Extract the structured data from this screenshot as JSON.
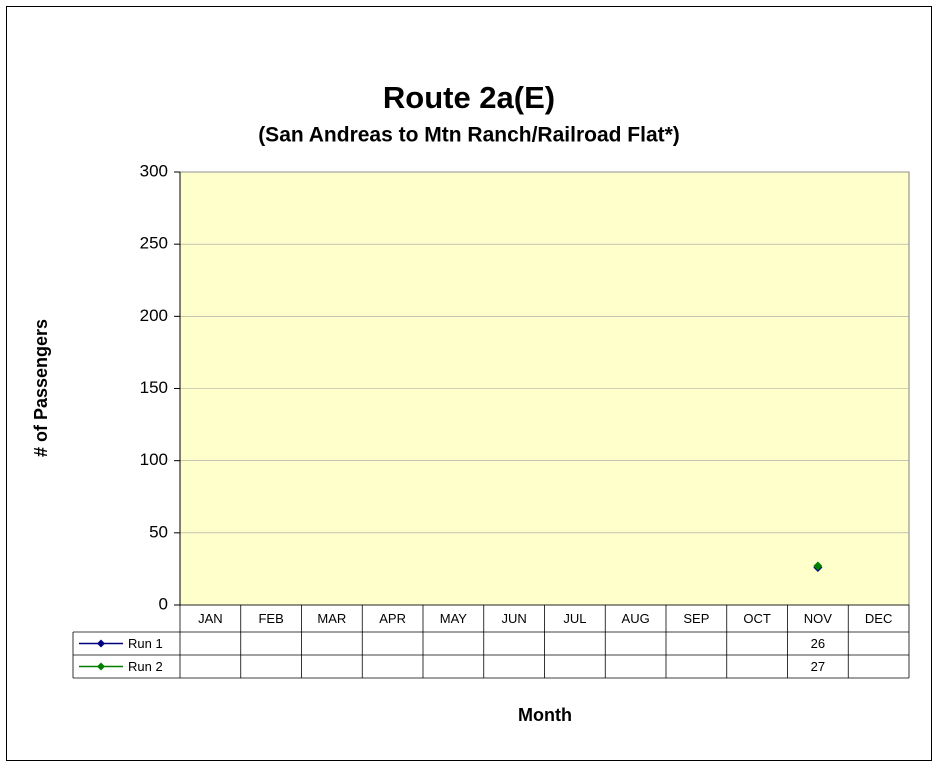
{
  "chart_data": {
    "type": "line",
    "title": "Route 2a(E)",
    "subtitle": "(San Andreas to Mtn Ranch/Railroad Flat*)",
    "y_label": "# of Passengers",
    "x_label": "Month",
    "categories": [
      "JAN",
      "FEB",
      "MAR",
      "APR",
      "MAY",
      "JUN",
      "JUL",
      "AUG",
      "SEP",
      "OCT",
      "NOV",
      "DEC"
    ],
    "series": [
      {
        "name": "Run 1",
        "color": "#000080",
        "values": [
          null,
          null,
          null,
          null,
          null,
          null,
          null,
          null,
          null,
          null,
          26,
          null
        ]
      },
      {
        "name": "Run 2",
        "color": "#008000",
        "values": [
          null,
          null,
          null,
          null,
          null,
          null,
          null,
          null,
          null,
          null,
          27,
          null
        ]
      }
    ],
    "ylim": [
      0,
      300
    ],
    "yticks": [
      0,
      50,
      100,
      150,
      200,
      250,
      300
    ],
    "grid": true,
    "plot_background": "#ffffcc",
    "data_table": true
  }
}
